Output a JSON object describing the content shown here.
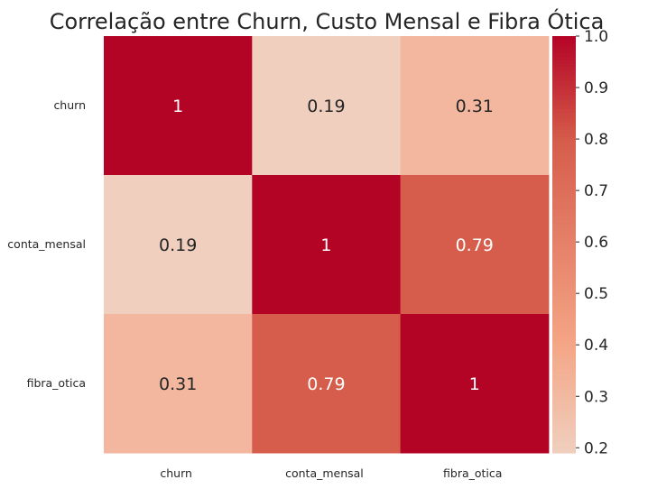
{
  "chart_data": {
    "type": "heatmap",
    "title": "Correlação entre Churn, Custo Mensal e Fibra Ótica",
    "rows": [
      "churn",
      "conta_mensal",
      "fibra_otica"
    ],
    "columns": [
      "churn",
      "conta_mensal",
      "fibra_otica"
    ],
    "values": [
      [
        1,
        0.19,
        0.31
      ],
      [
        0.19,
        1,
        0.79
      ],
      [
        0.31,
        0.79,
        1
      ]
    ],
    "cell_labels": [
      [
        "1",
        "0.19",
        "0.31"
      ],
      [
        "0.19",
        "1",
        "0.79"
      ],
      [
        "0.31",
        "0.79",
        "1"
      ]
    ],
    "colorbar": {
      "range": [
        0.19,
        1.0
      ],
      "ticks": [
        "0.2",
        "0.3",
        "0.4",
        "0.5",
        "0.6",
        "0.7",
        "0.8",
        "0.9",
        "1.0"
      ],
      "colormap": "coolwarm (upper half)",
      "low_color": "#F0CFBE",
      "mid_color": "#F4A484",
      "high_color": "#B40426"
    }
  }
}
